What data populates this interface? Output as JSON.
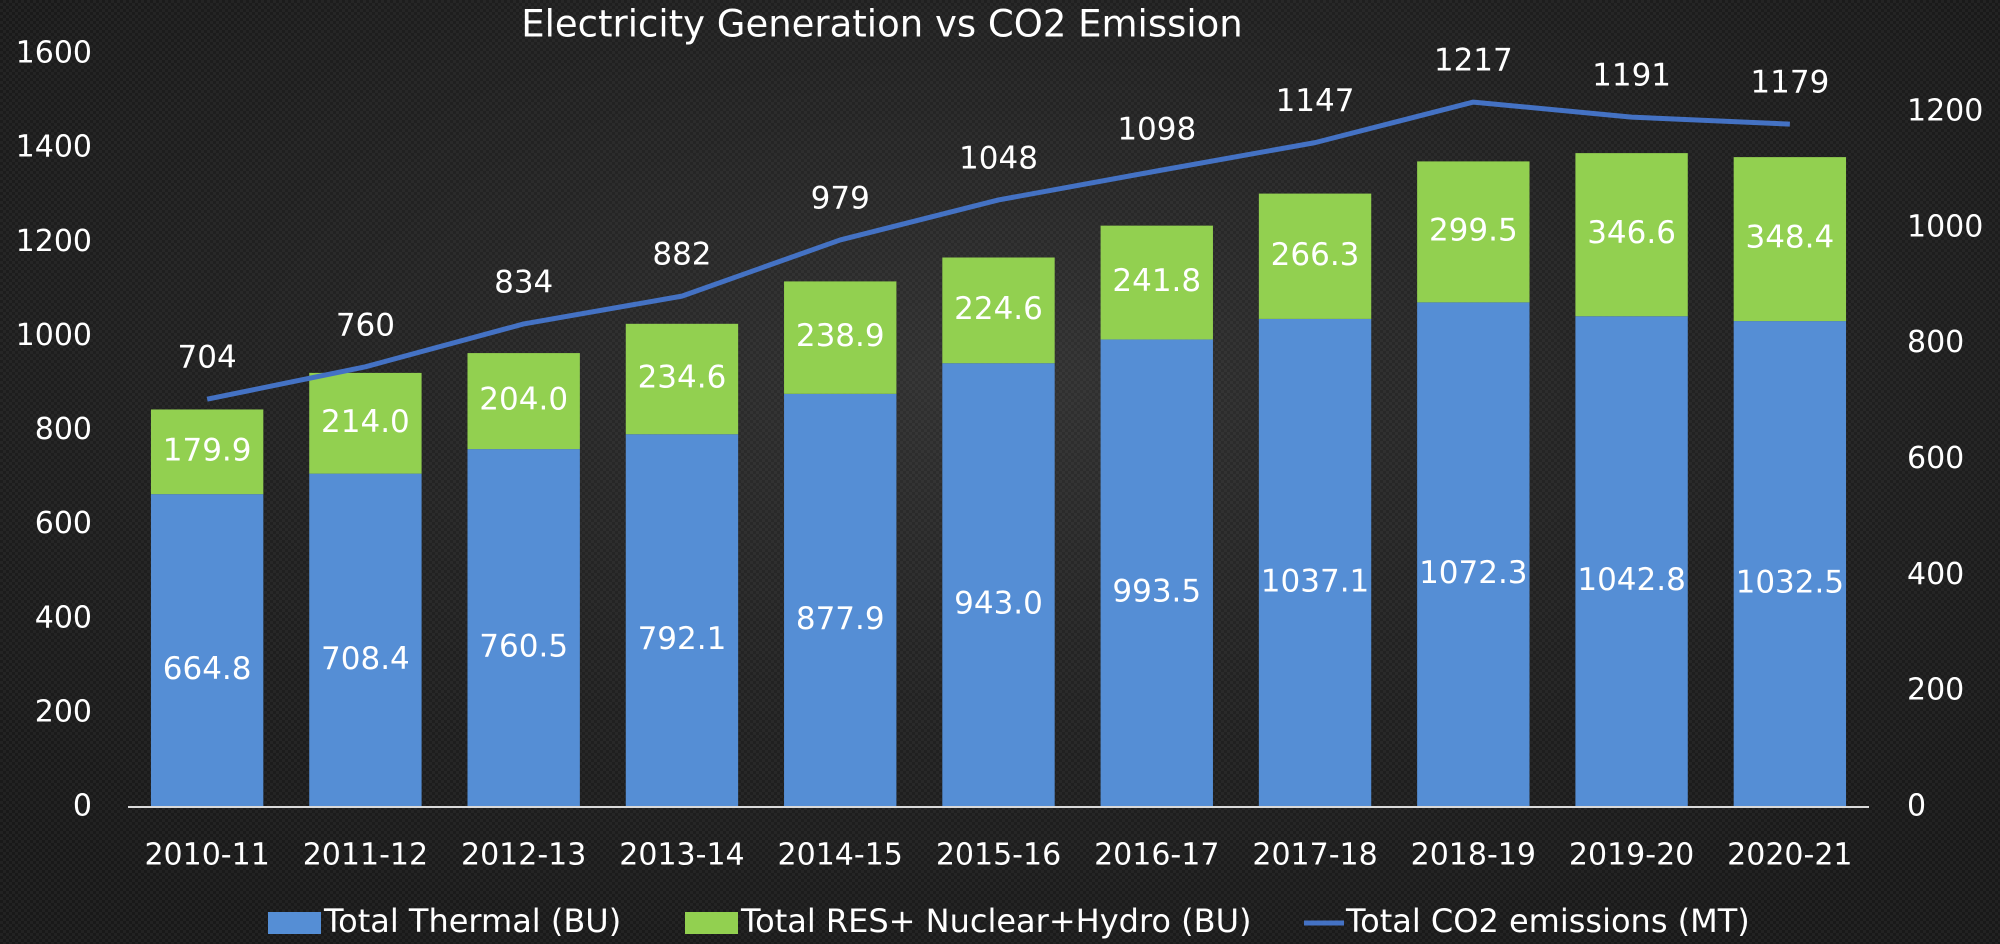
{
  "chart_data": {
    "type": "bar",
    "stacked": true,
    "title": "Electricity Generation vs CO2 Emission",
    "categories": [
      "2010-11",
      "2011-12",
      "2012-13",
      "2013-14",
      "2014-15",
      "2015-16",
      "2016-17",
      "2017-18",
      "2018-19",
      "2019-20",
      "2020-21"
    ],
    "series": [
      {
        "name": "Total Thermal (BU)",
        "color": "#558ed5",
        "type": "bar",
        "values": [
          664.8,
          708.4,
          760.5,
          792.1,
          877.9,
          943.0,
          993.5,
          1037.1,
          1072.3,
          1042.8,
          1032.5
        ],
        "value_labels": [
          "664.8",
          "708.4",
          "760.5",
          "792.1",
          "877.9",
          "943.0",
          "993.5",
          "1037.1",
          "1072.3",
          "1042.8",
          "1032.5"
        ]
      },
      {
        "name": "Total RES+ Nuclear+Hydro (BU)",
        "color": "#92d050",
        "type": "bar",
        "values": [
          179.9,
          214.0,
          204.0,
          234.6,
          238.9,
          224.6,
          241.8,
          266.3,
          299.5,
          346.6,
          348.4
        ],
        "value_labels": [
          "179.9",
          "214.0",
          "204.0",
          "234.6",
          "238.9",
          "224.6",
          "241.8",
          "266.3",
          "299.5",
          "346.6",
          "348.4"
        ]
      },
      {
        "name": "Total CO2 emissions (MT)",
        "color": "#4472c4",
        "type": "line",
        "axis": "y2",
        "values": [
          704,
          760,
          834,
          882,
          979,
          1048,
          1098,
          1147,
          1217,
          1191,
          1179
        ]
      }
    ],
    "ylim": [
      0,
      1600
    ],
    "yticks": [
      0,
      200,
      400,
      600,
      800,
      1000,
      1200,
      1400,
      1600
    ],
    "y2lim": [
      0,
      1300
    ],
    "y2ticks": [
      0,
      200,
      400,
      600,
      800,
      1000,
      1200
    ],
    "grid": false,
    "legend": "bottom"
  }
}
